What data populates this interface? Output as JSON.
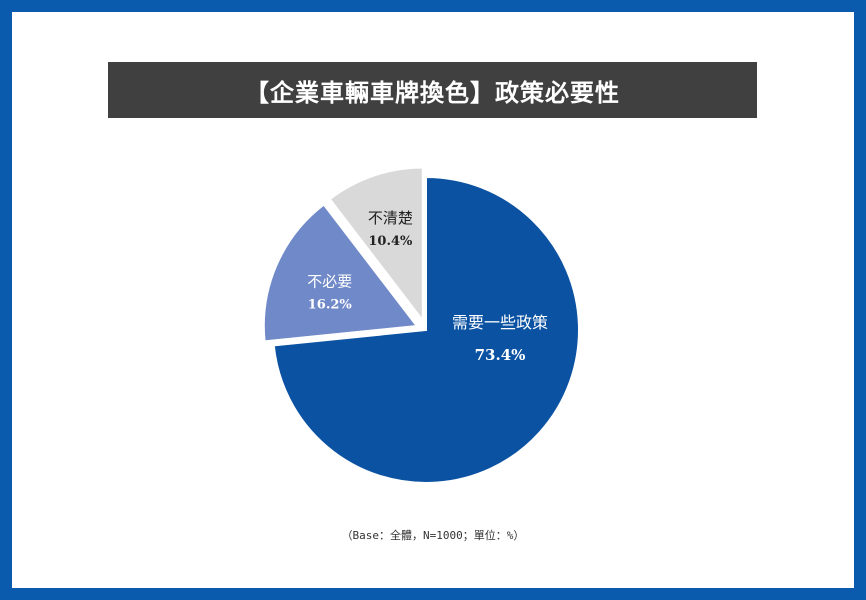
{
  "title": "【企業車輛車牌換色】政策必要性",
  "chart_data": {
    "type": "pie",
    "slices": [
      {
        "label": "需要一些政策",
        "value": 73.4,
        "value_label": "73.4%",
        "color": "#0b52a3",
        "text_color": "#ffffff"
      },
      {
        "label": "不必要",
        "value": 16.2,
        "value_label": "16.2%",
        "color": "#7089c9",
        "text_color": "#ffffff"
      },
      {
        "label": "不清楚",
        "value": 10.4,
        "value_label": "10.4%",
        "color": "#d9d9d9",
        "text_color": "#222222"
      }
    ]
  },
  "footnote": "（Base：全體，N=1000；單位：%）",
  "colors": {
    "frame": "#0a5aae",
    "title_bg": "#404040"
  }
}
